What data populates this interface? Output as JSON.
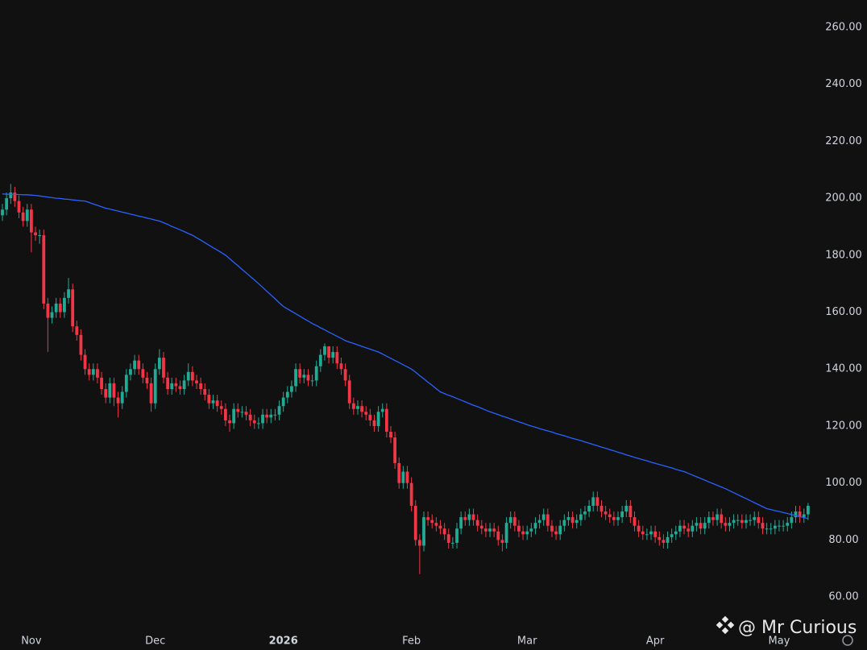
{
  "chart_data": {
    "type": "candlestick",
    "categories": [
      null,
      null,
      null,
      null,
      null,
      null,
      null,
      "Nov",
      null,
      null,
      null,
      null,
      null,
      null,
      null,
      null,
      null,
      null,
      null,
      null,
      null,
      null,
      null,
      null,
      null,
      null,
      null,
      null,
      null,
      null,
      null,
      null,
      null,
      null,
      null,
      null,
      null,
      "Dec",
      null,
      null,
      null,
      null,
      null,
      null,
      null,
      null,
      null,
      null,
      null,
      null,
      null,
      null,
      null,
      null,
      null,
      null,
      null,
      null,
      null,
      null,
      null,
      null,
      null,
      null,
      null,
      null,
      null,
      null,
      "2026",
      null,
      null,
      null,
      null,
      null,
      null,
      null,
      null,
      null,
      null,
      null,
      null,
      null,
      null,
      null,
      null,
      null,
      null,
      null,
      null,
      null,
      null,
      null,
      null,
      null,
      null,
      null,
      null,
      null,
      null,
      "Feb",
      null,
      null,
      null,
      null,
      null,
      null,
      null,
      null,
      null,
      null,
      null,
      null,
      null,
      null,
      null,
      null,
      null,
      null,
      null,
      null,
      null,
      null,
      null,
      null,
      null,
      null,
      null,
      "Mar",
      null,
      null,
      null,
      null,
      null,
      null,
      null,
      null,
      null,
      null,
      null,
      null,
      null,
      null,
      null,
      null,
      null,
      null,
      null,
      null,
      null,
      null,
      null,
      null,
      null,
      null,
      null,
      null,
      null,
      null,
      "Apr",
      null,
      null,
      null,
      null,
      null,
      null,
      null,
      null,
      null,
      null,
      null,
      null,
      null,
      null,
      null,
      null,
      null,
      null,
      null,
      null,
      null,
      null,
      null,
      null,
      null,
      null,
      null,
      null,
      null,
      "May",
      null,
      null,
      null,
      null,
      null,
      null,
      null
    ],
    "open": [
      194,
      196,
      200,
      202,
      199,
      195,
      192,
      196,
      188,
      187,
      187,
      163,
      158,
      160,
      163,
      160,
      165,
      168,
      155,
      152,
      145,
      140,
      138,
      140,
      137,
      133,
      130,
      135,
      130,
      128,
      132,
      138,
      140,
      143,
      140,
      137,
      135,
      128,
      140,
      144,
      137,
      133,
      135,
      134,
      133,
      136,
      139,
      136,
      135,
      133,
      131,
      128,
      129,
      127,
      126,
      122,
      121,
      126,
      125,
      125,
      124,
      122,
      121,
      121,
      124,
      123,
      124,
      124,
      127,
      130,
      132,
      134,
      140,
      137,
      138,
      136,
      136,
      141,
      145,
      148,
      144,
      146,
      142,
      140,
      136,
      128,
      126,
      127,
      125,
      124,
      122,
      120,
      125,
      126,
      118,
      116,
      107,
      100,
      104,
      100,
      92,
      80,
      78,
      88,
      87,
      86,
      85,
      84,
      82,
      79,
      79,
      84,
      88,
      87,
      89,
      87,
      85,
      84,
      83,
      84,
      83,
      80,
      79,
      86,
      88,
      85,
      83,
      82,
      83,
      84,
      86,
      87,
      89,
      85,
      83,
      82,
      85,
      87,
      88,
      86,
      87,
      89,
      90,
      92,
      95,
      92,
      90,
      89,
      88,
      87,
      88,
      90,
      92,
      88,
      85,
      83,
      82,
      82,
      83,
      81,
      80,
      79,
      81,
      82,
      83,
      85,
      84,
      83,
      85,
      86,
      84,
      86,
      88,
      87,
      89,
      86,
      85,
      86,
      87,
      87,
      86,
      87,
      87,
      88,
      86,
      84,
      84,
      84,
      85,
      85,
      85,
      86,
      88,
      90,
      88,
      89
    ],
    "high": [
      198,
      202,
      205,
      204,
      201,
      197,
      198,
      198,
      190,
      189,
      189,
      165,
      162,
      165,
      165,
      167,
      172,
      170,
      157,
      154,
      147,
      142,
      142,
      142,
      139,
      135,
      137,
      137,
      132,
      134,
      140,
      142,
      145,
      145,
      142,
      139,
      137,
      142,
      147,
      146,
      139,
      137,
      137,
      136,
      138,
      142,
      141,
      138,
      137,
      135,
      133,
      131,
      131,
      129,
      128,
      124,
      128,
      128,
      127,
      127,
      126,
      124,
      123,
      126,
      126,
      126,
      126,
      129,
      132,
      134,
      136,
      142,
      142,
      140,
      140,
      138,
      143,
      147,
      149,
      148,
      148,
      148,
      144,
      142,
      138,
      130,
      129,
      129,
      127,
      126,
      124,
      127,
      128,
      128,
      120,
      118,
      109,
      106,
      106,
      102,
      94,
      82,
      90,
      90,
      89,
      88,
      87,
      86,
      84,
      81,
      86,
      90,
      90,
      91,
      91,
      89,
      87,
      86,
      86,
      86,
      85,
      82,
      88,
      90,
      90,
      87,
      85,
      85,
      86,
      88,
      89,
      91,
      91,
      87,
      85,
      87,
      89,
      90,
      90,
      89,
      91,
      92,
      94,
      97,
      97,
      94,
      92,
      91,
      90,
      90,
      92,
      94,
      94,
      90,
      87,
      85,
      84,
      85,
      85,
      83,
      82,
      83,
      84,
      85,
      87,
      87,
      86,
      87,
      88,
      88,
      88,
      90,
      90,
      91,
      91,
      88,
      88,
      89,
      89,
      89,
      89,
      89,
      90,
      90,
      88,
      86,
      86,
      87,
      87,
      87,
      88,
      90,
      92,
      92,
      91,
      93
    ],
    "low": [
      192,
      194,
      198,
      197,
      193,
      190,
      190,
      181,
      185,
      184,
      161,
      146,
      156,
      158,
      158,
      158,
      163,
      153,
      150,
      143,
      138,
      136,
      136,
      135,
      131,
      128,
      128,
      127,
      123,
      126,
      130,
      136,
      138,
      138,
      135,
      133,
      125,
      126,
      138,
      135,
      131,
      131,
      132,
      131,
      131,
      134,
      134,
      133,
      131,
      129,
      126,
      126,
      125,
      124,
      120,
      118,
      119,
      123,
      123,
      122,
      120,
      119,
      119,
      119,
      121,
      121,
      122,
      122,
      125,
      128,
      130,
      132,
      135,
      135,
      134,
      134,
      134,
      139,
      143,
      142,
      142,
      140,
      138,
      134,
      126,
      124,
      124,
      123,
      122,
      120,
      118,
      118,
      123,
      116,
      114,
      105,
      98,
      98,
      98,
      90,
      78,
      68,
      76,
      85,
      84,
      83,
      82,
      80,
      77,
      77,
      77,
      82,
      85,
      85,
      85,
      83,
      82,
      81,
      81,
      81,
      78,
      76,
      77,
      84,
      83,
      81,
      80,
      80,
      81,
      82,
      84,
      85,
      83,
      81,
      80,
      80,
      83,
      85,
      84,
      84,
      85,
      87,
      88,
      90,
      90,
      88,
      87,
      86,
      85,
      85,
      86,
      88,
      86,
      83,
      81,
      80,
      80,
      80,
      79,
      78,
      77,
      77,
      79,
      80,
      81,
      82,
      81,
      81,
      83,
      82,
      82,
      84,
      85,
      85,
      84,
      83,
      83,
      84,
      85,
      84,
      84,
      85,
      85,
      84,
      82,
      82,
      82,
      82,
      83,
      83,
      83,
      84,
      86,
      86,
      86,
      87
    ],
    "close": [
      196,
      200,
      202,
      199,
      195,
      192,
      196,
      188,
      187,
      187,
      163,
      158,
      160,
      163,
      160,
      165,
      168,
      155,
      152,
      145,
      140,
      138,
      140,
      137,
      133,
      130,
      135,
      130,
      128,
      132,
      138,
      140,
      143,
      140,
      137,
      135,
      128,
      140,
      144,
      137,
      133,
      135,
      134,
      133,
      136,
      139,
      136,
      135,
      133,
      131,
      128,
      129,
      127,
      126,
      122,
      121,
      126,
      125,
      125,
      124,
      122,
      121,
      121,
      124,
      123,
      124,
      124,
      127,
      130,
      132,
      134,
      140,
      137,
      138,
      136,
      136,
      141,
      145,
      148,
      144,
      146,
      142,
      140,
      136,
      128,
      126,
      127,
      125,
      124,
      122,
      120,
      125,
      126,
      118,
      116,
      107,
      100,
      104,
      100,
      92,
      80,
      78,
      88,
      87,
      86,
      85,
      84,
      82,
      79,
      79,
      84,
      88,
      87,
      89,
      87,
      85,
      84,
      83,
      84,
      83,
      80,
      79,
      86,
      88,
      85,
      83,
      82,
      83,
      84,
      86,
      87,
      89,
      85,
      83,
      82,
      85,
      87,
      88,
      86,
      87,
      89,
      90,
      92,
      95,
      92,
      90,
      89,
      88,
      87,
      88,
      90,
      92,
      88,
      85,
      83,
      82,
      82,
      83,
      81,
      80,
      79,
      81,
      82,
      83,
      85,
      84,
      83,
      85,
      86,
      84,
      86,
      88,
      87,
      89,
      86,
      85,
      86,
      87,
      87,
      86,
      87,
      87,
      88,
      86,
      84,
      84,
      84,
      85,
      85,
      85,
      86,
      88,
      90,
      88,
      89,
      92
    ],
    "up_color": "#22ab94",
    "down_color": "#f23645",
    "line": {
      "color": "#2962ff",
      "values": [
        201.5,
        201.4,
        201.4,
        201.3,
        201.3,
        201.2,
        201.2,
        201.1,
        201,
        200.8,
        200.6,
        200.4,
        200.2,
        200,
        199.9,
        199.7,
        199.6,
        199.4,
        199.3,
        199.1,
        199,
        198.5,
        198,
        197.5,
        197,
        196.5,
        196.2,
        195.8,
        195.5,
        195.1,
        194.8,
        194.4,
        194.1,
        193.7,
        193.4,
        193,
        192.7,
        192.3,
        192,
        191.4,
        190.8,
        190.1,
        189.5,
        188.9,
        188.3,
        187.6,
        187,
        186.1,
        185.3,
        184.4,
        183.5,
        182.6,
        181.8,
        180.9,
        180,
        178.8,
        177.5,
        176.3,
        175,
        173.8,
        172.5,
        171.3,
        170,
        168.7,
        167.3,
        166,
        164.7,
        163.3,
        162,
        161.1,
        160.3,
        159.4,
        158.6,
        157.7,
        156.9,
        156,
        155.3,
        154.5,
        153.8,
        153,
        152.3,
        151.5,
        150.8,
        150,
        149.5,
        149,
        148.5,
        148,
        147.5,
        147,
        146.5,
        146,
        145.3,
        144.5,
        143.8,
        143,
        142.3,
        141.5,
        140.8,
        140,
        138.9,
        137.7,
        136.6,
        135.4,
        134.3,
        133.1,
        132,
        131.4,
        130.8,
        130.3,
        129.7,
        129.1,
        128.5,
        127.9,
        127.3,
        126.8,
        126.2,
        125.6,
        125,
        124.5,
        124,
        123.5,
        123,
        122.5,
        122,
        121.5,
        121,
        120.5,
        120,
        119.6,
        119.1,
        118.7,
        118.3,
        117.9,
        117.4,
        117,
        116.6,
        116.1,
        115.7,
        115.3,
        114.9,
        114.4,
        114,
        113.5,
        113.1,
        112.6,
        112.2,
        111.7,
        111.3,
        110.8,
        110.4,
        109.9,
        109.5,
        109,
        108.6,
        108.2,
        107.8,
        107.3,
        106.9,
        106.5,
        106.1,
        105.7,
        105.3,
        104.8,
        104.4,
        104,
        103.4,
        102.8,
        102.2,
        101.6,
        101,
        100.4,
        99.8,
        99.2,
        98.6,
        98,
        97.3,
        96.6,
        95.9,
        95.2,
        94.5,
        93.8,
        93.1,
        92.4,
        91.7,
        91,
        90.7,
        90.3,
        90,
        89.6,
        89.3,
        88.9,
        88.6,
        88.2,
        87.9,
        87.5
      ]
    },
    "ylim": [
      49,
      269.6
    ],
    "yticks": [
      {
        "value": 60,
        "label": "60.00"
      },
      {
        "value": 80,
        "label": "80.00"
      },
      {
        "value": 100,
        "label": "100.00"
      },
      {
        "value": 120,
        "label": "120.00"
      },
      {
        "value": 140,
        "label": "140.00"
      },
      {
        "value": 160,
        "label": "160.00"
      },
      {
        "value": 180,
        "label": "180.00"
      },
      {
        "value": 200,
        "label": "200.00"
      },
      {
        "value": 220,
        "label": "220.00"
      },
      {
        "value": 240,
        "label": "240.00"
      },
      {
        "value": 260,
        "label": "260.00"
      }
    ],
    "grid": false,
    "watermark": "@ Mr Curious"
  }
}
